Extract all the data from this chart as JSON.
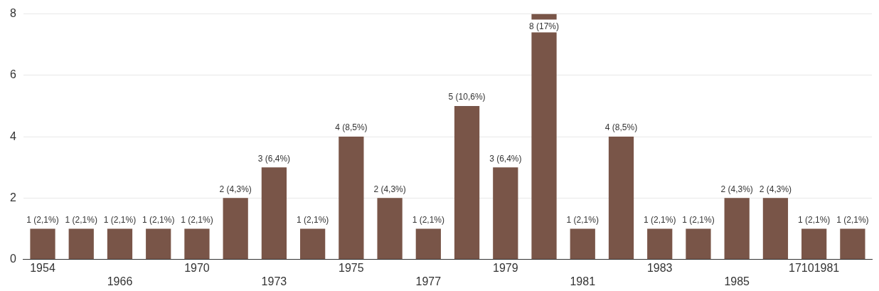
{
  "chart_data": {
    "type": "bar",
    "categories": [
      "1954",
      null,
      "1966",
      null,
      "1970",
      null,
      "1973",
      null,
      "1975",
      null,
      "1977",
      null,
      "1979",
      null,
      "1981",
      null,
      "1983",
      null,
      "1985",
      null,
      "17101981",
      null
    ],
    "values": [
      1,
      1,
      1,
      1,
      1,
      2,
      3,
      1,
      4,
      2,
      1,
      5,
      3,
      8,
      1,
      4,
      1,
      1,
      2,
      2,
      1,
      1
    ],
    "value_labels": [
      "1 (2,1%)",
      "1 (2,1%)",
      "1 (2,1%)",
      "1 (2,1%)",
      "1 (2,1%)",
      "2 (4,3%)",
      "3 (6,4%)",
      "1 (2,1%)",
      "4 (8,5%)",
      "2 (4,3%)",
      "1 (2,1%)",
      "5 (10,6%)",
      "3 (6,4%)",
      "8 (17%)",
      "1 (2,1%)",
      "4 (8,5%)",
      "1 (2,1%)",
      "1 (2,1%)",
      "2 (4,3%)",
      "2 (4,3%)",
      "1 (2,1%)",
      "1 (2,1%)"
    ],
    "color": "#795548",
    "ylim": [
      0,
      8
    ],
    "yticks": [
      0,
      2,
      4,
      6,
      8
    ],
    "grid": "y",
    "legend": false
  }
}
